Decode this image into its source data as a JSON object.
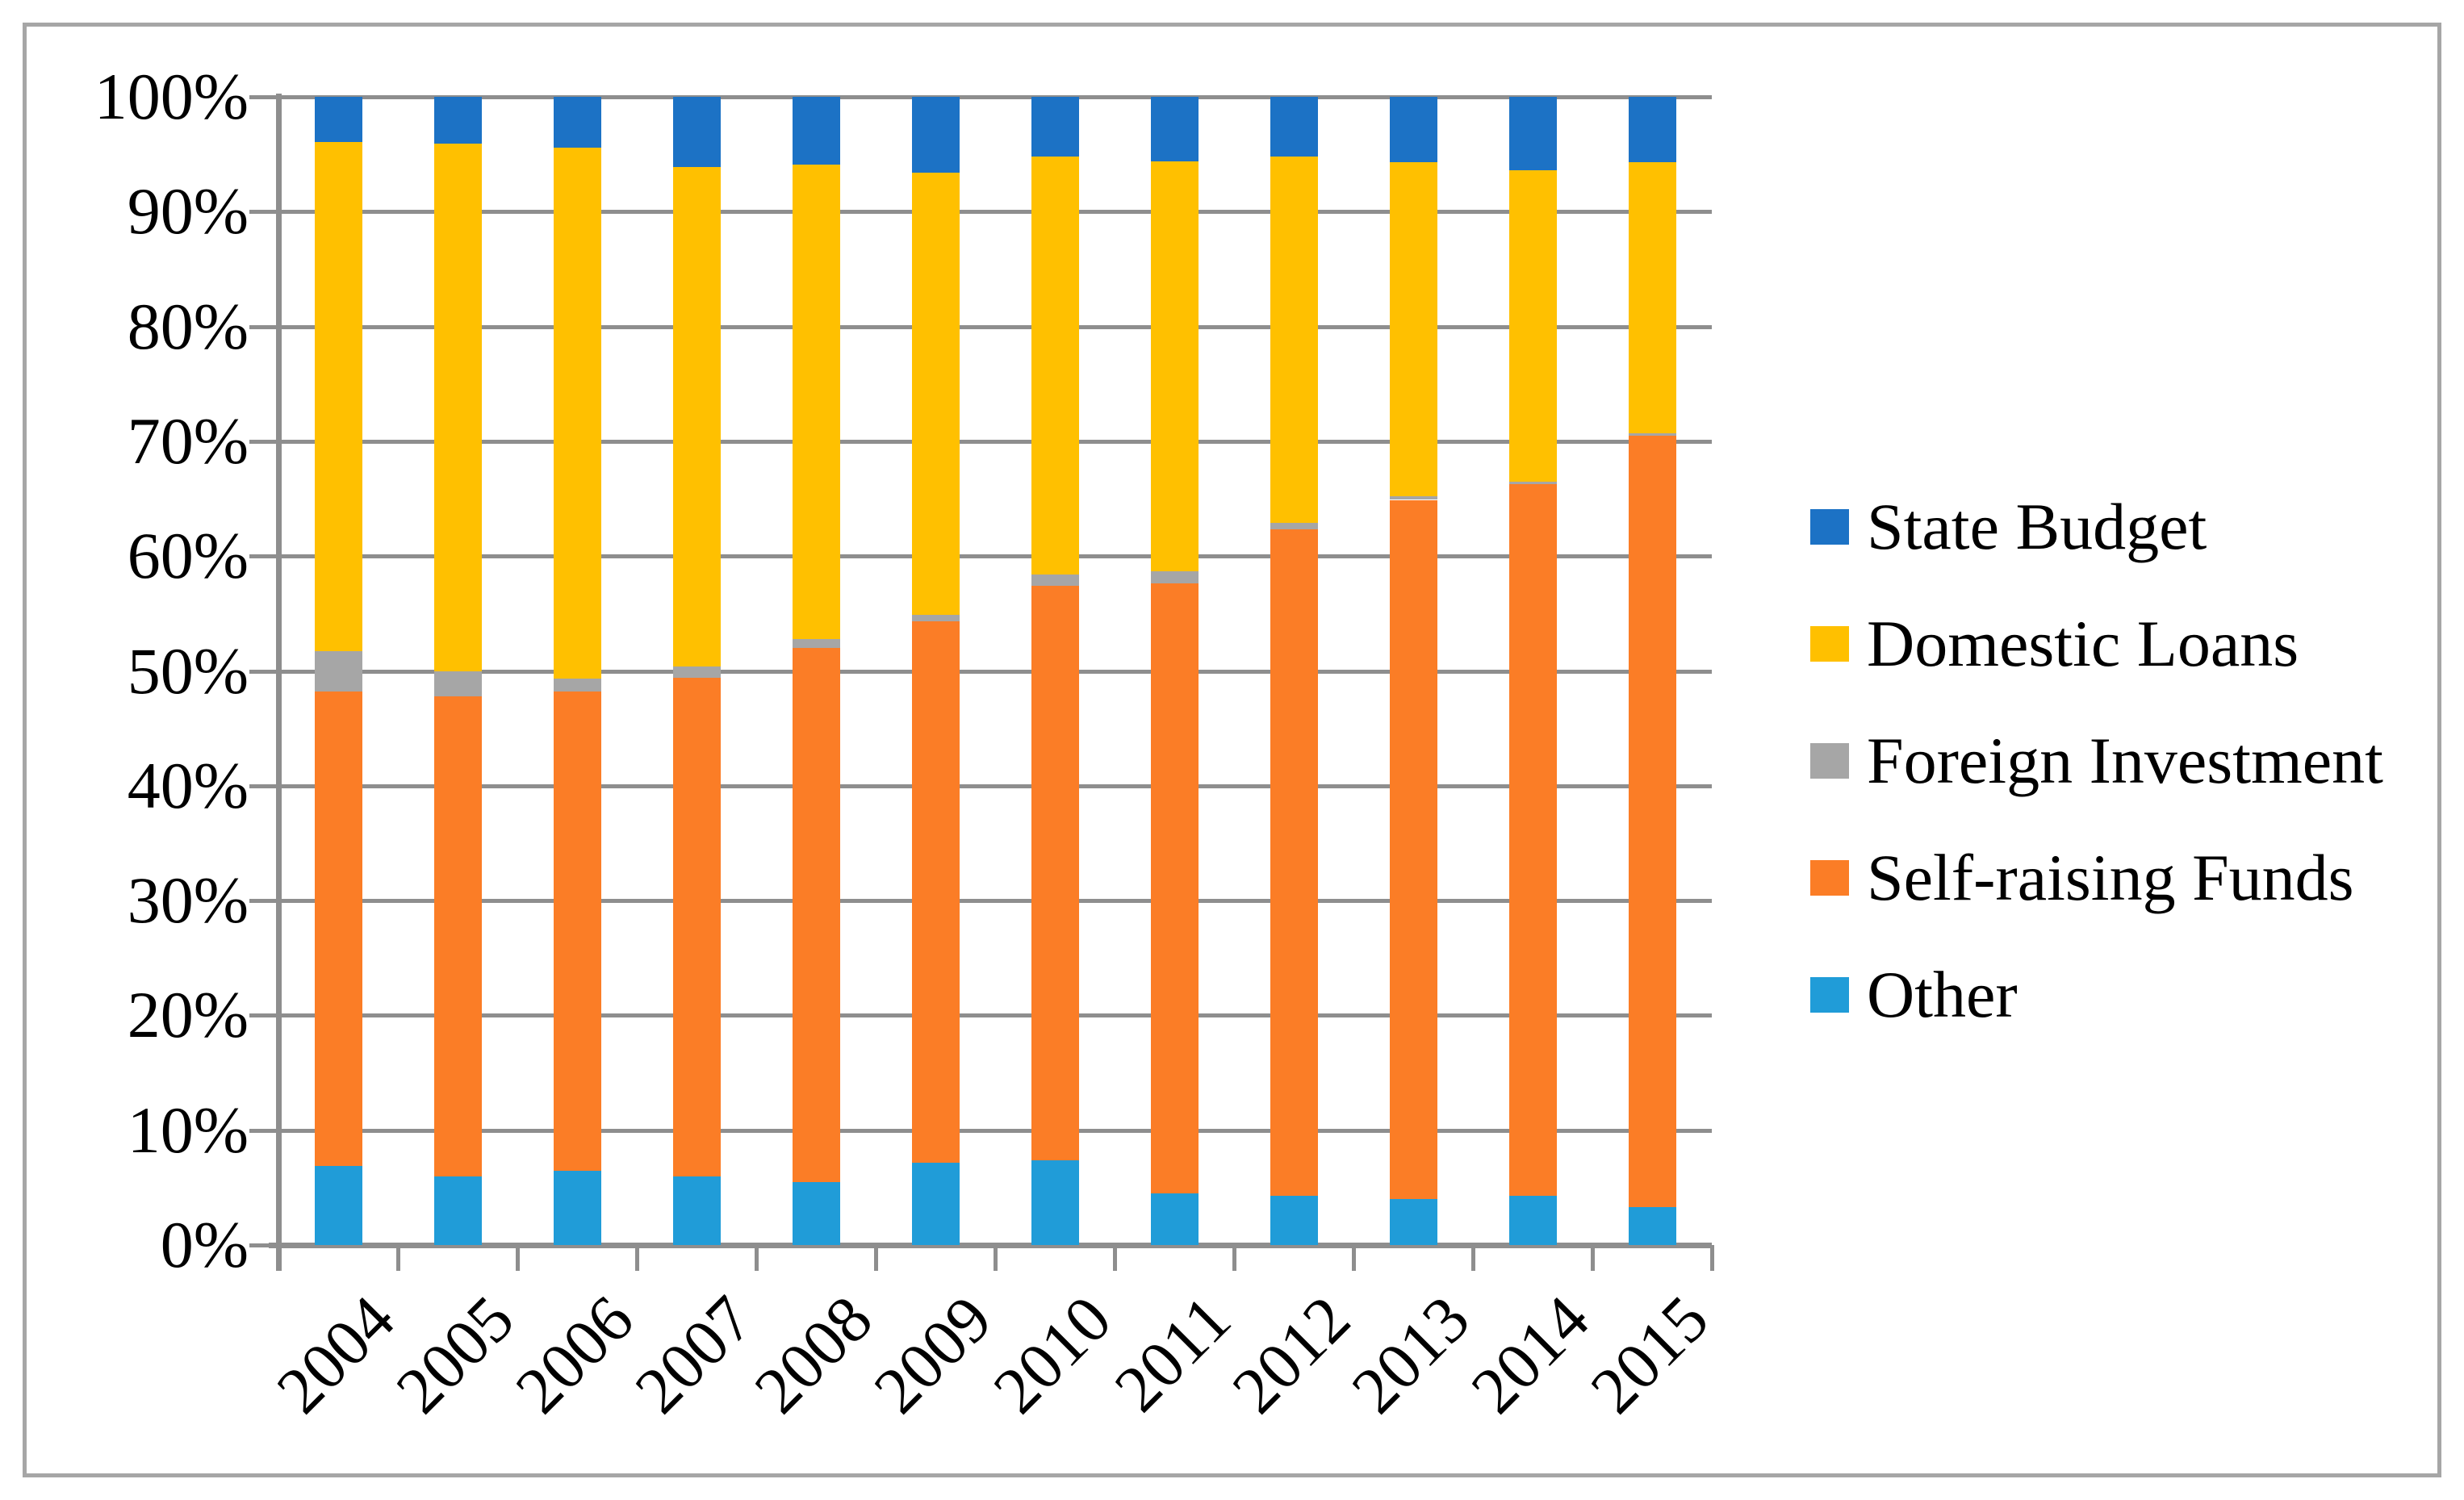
{
  "chart_data": {
    "type": "bar",
    "stacked": true,
    "percent_stacked": true,
    "title": "",
    "xlabel": "",
    "ylabel": "",
    "categories": [
      "2004",
      "2005",
      "2006",
      "2007",
      "2008",
      "2009",
      "2010",
      "2011",
      "2012",
      "2013",
      "2014",
      "2015"
    ],
    "series": [
      {
        "name": "Other",
        "color": "#209cd8",
        "values": [
          6.9,
          6.0,
          6.5,
          6.0,
          5.5,
          7.2,
          7.4,
          4.5,
          4.3,
          4.0,
          4.3,
          3.3
        ]
      },
      {
        "name": "Self-raising Funds",
        "color": "#fb7d26",
        "values": [
          41.3,
          41.8,
          41.7,
          43.4,
          46.5,
          47.1,
          50.0,
          53.1,
          58.0,
          60.9,
          62.0,
          67.2
        ]
      },
      {
        "name": "Foreign Investment",
        "color": "#a6a6a6",
        "values": [
          3.5,
          2.2,
          1.1,
          1.0,
          0.8,
          0.6,
          1.0,
          1.1,
          0.6,
          0.3,
          0.2,
          0.2
        ]
      },
      {
        "name": "Domestic Loans",
        "color": "#ffc000",
        "values": [
          44.4,
          45.9,
          46.3,
          43.5,
          41.3,
          38.5,
          36.4,
          35.7,
          31.9,
          29.1,
          27.1,
          23.6
        ]
      },
      {
        "name": "State Budget",
        "color": "#1c72c5",
        "values": [
          3.9,
          4.1,
          4.4,
          6.1,
          5.9,
          6.6,
          5.2,
          5.6,
          5.2,
          5.7,
          6.4,
          5.7
        ]
      }
    ],
    "legend_order": [
      "State Budget",
      "Domestic Loans",
      "Foreign Investment",
      "Self-raising Funds",
      "Other"
    ],
    "legend_position": "right",
    "y_ticks": [
      "0%",
      "10%",
      "20%",
      "30%",
      "40%",
      "50%",
      "60%",
      "70%",
      "80%",
      "90%",
      "100%"
    ],
    "ylim": [
      0,
      100
    ],
    "grid": true,
    "colors": {
      "gridline": "#8e8e8e",
      "axis": "#8e8e8e",
      "border": "#a6a6a6",
      "background": "#ffffff",
      "text": "#000000"
    }
  }
}
